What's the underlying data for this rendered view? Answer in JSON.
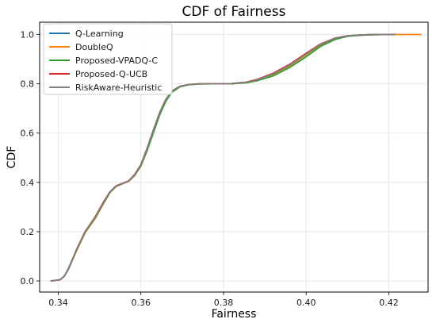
{
  "chart_data": {
    "type": "line",
    "title": "CDF of Fairness",
    "xlabel": "Fairness",
    "ylabel": "CDF",
    "xlim": [
      0.3355,
      0.4295
    ],
    "ylim": [
      -0.045,
      1.05
    ],
    "xticks": [
      0.34,
      0.36,
      0.38,
      0.4,
      0.42
    ],
    "xtick_labels": [
      "0.34",
      "0.36",
      "0.38",
      "0.40",
      "0.42"
    ],
    "yticks": [
      0.0,
      0.2,
      0.4,
      0.6,
      0.8,
      1.0
    ],
    "ytick_labels": [
      "0.0",
      "0.2",
      "0.4",
      "0.6",
      "0.8",
      "1.0"
    ],
    "grid": true,
    "legend_position": "top-left",
    "series": [
      {
        "name": "Q-Learning",
        "color": "#1f77b4",
        "x": [
          0.3383,
          0.3405,
          0.3415,
          0.3425,
          0.3445,
          0.3465,
          0.349,
          0.351,
          0.3525,
          0.354,
          0.3555,
          0.357,
          0.3585,
          0.36,
          0.3615,
          0.363,
          0.3645,
          0.366,
          0.3675,
          0.3695,
          0.3715,
          0.374,
          0.378,
          0.382,
          0.3855,
          0.388,
          0.392,
          0.396,
          0.4,
          0.4035,
          0.407,
          0.41,
          0.413,
          0.416,
          0.419,
          0.4215
        ],
        "y": [
          0.0,
          0.005,
          0.02,
          0.05,
          0.13,
          0.2,
          0.26,
          0.32,
          0.36,
          0.385,
          0.395,
          0.405,
          0.43,
          0.47,
          0.535,
          0.61,
          0.68,
          0.735,
          0.77,
          0.79,
          0.797,
          0.8,
          0.8,
          0.801,
          0.806,
          0.815,
          0.84,
          0.875,
          0.92,
          0.96,
          0.985,
          0.995,
          0.998,
          1.0,
          1.0,
          1.0
        ]
      },
      {
        "name": "DoubleQ",
        "color": "#ff7f0e",
        "x": [
          0.3383,
          0.3405,
          0.3415,
          0.3425,
          0.3445,
          0.3465,
          0.349,
          0.351,
          0.3525,
          0.354,
          0.3555,
          0.357,
          0.3585,
          0.36,
          0.3615,
          0.363,
          0.3645,
          0.366,
          0.3675,
          0.3695,
          0.3715,
          0.374,
          0.378,
          0.382,
          0.3855,
          0.388,
          0.392,
          0.396,
          0.4,
          0.4035,
          0.407,
          0.41,
          0.413,
          0.416,
          0.419,
          0.4215,
          0.4245,
          0.4278
        ],
        "y": [
          0.0,
          0.005,
          0.02,
          0.05,
          0.125,
          0.195,
          0.255,
          0.315,
          0.358,
          0.383,
          0.394,
          0.404,
          0.428,
          0.468,
          0.53,
          0.605,
          0.675,
          0.73,
          0.768,
          0.789,
          0.797,
          0.8,
          0.8,
          0.801,
          0.806,
          0.815,
          0.838,
          0.873,
          0.918,
          0.958,
          0.983,
          0.994,
          0.998,
          0.999,
          1.0,
          1.0,
          1.0,
          1.0
        ]
      },
      {
        "name": "Proposed-VPADQ-C",
        "color": "#2ca02c",
        "x": [
          0.3383,
          0.3405,
          0.3415,
          0.3425,
          0.3445,
          0.3465,
          0.349,
          0.351,
          0.3525,
          0.354,
          0.3555,
          0.357,
          0.3585,
          0.36,
          0.3615,
          0.363,
          0.3645,
          0.366,
          0.3675,
          0.3695,
          0.3715,
          0.374,
          0.378,
          0.382,
          0.3855,
          0.388,
          0.392,
          0.396,
          0.4,
          0.4035,
          0.407,
          0.41,
          0.413,
          0.416,
          0.419,
          0.4215
        ],
        "y": [
          0.0,
          0.005,
          0.02,
          0.048,
          0.128,
          0.198,
          0.258,
          0.318,
          0.359,
          0.384,
          0.395,
          0.405,
          0.428,
          0.466,
          0.528,
          0.6,
          0.672,
          0.728,
          0.766,
          0.788,
          0.796,
          0.799,
          0.8,
          0.8,
          0.804,
          0.812,
          0.832,
          0.866,
          0.91,
          0.952,
          0.98,
          0.993,
          0.997,
          0.999,
          1.0,
          1.0
        ]
      },
      {
        "name": "Proposed-Q-UCB",
        "color": "#d62728",
        "x": [
          0.3383,
          0.3405,
          0.3415,
          0.3425,
          0.3445,
          0.3465,
          0.349,
          0.351,
          0.3525,
          0.354,
          0.3555,
          0.357,
          0.3585,
          0.36,
          0.3615,
          0.363,
          0.3645,
          0.366,
          0.3675,
          0.3695,
          0.3715,
          0.374,
          0.378,
          0.382,
          0.3855,
          0.388,
          0.392,
          0.396,
          0.4,
          0.4035,
          0.407,
          0.41,
          0.413,
          0.416,
          0.419,
          0.4215
        ],
        "y": [
          0.0,
          0.005,
          0.021,
          0.052,
          0.13,
          0.2,
          0.262,
          0.322,
          0.361,
          0.386,
          0.396,
          0.406,
          0.432,
          0.472,
          0.538,
          0.612,
          0.682,
          0.736,
          0.771,
          0.79,
          0.797,
          0.8,
          0.8,
          0.801,
          0.807,
          0.817,
          0.843,
          0.879,
          0.924,
          0.962,
          0.986,
          0.995,
          0.998,
          1.0,
          1.0,
          1.0
        ]
      },
      {
        "name": "RiskAware-Heuristic",
        "color": "#7f7f7f",
        "x": [
          0.3383,
          0.3405,
          0.3415,
          0.3425,
          0.3445,
          0.3465,
          0.349,
          0.351,
          0.3525,
          0.354,
          0.3555,
          0.357,
          0.3585,
          0.36,
          0.3615,
          0.363,
          0.3645,
          0.366,
          0.3675,
          0.3695,
          0.3715,
          0.374,
          0.378,
          0.382,
          0.3855,
          0.388,
          0.392,
          0.396,
          0.4,
          0.4035,
          0.407,
          0.41,
          0.413,
          0.416,
          0.419,
          0.4215
        ],
        "y": [
          0.0,
          0.005,
          0.02,
          0.05,
          0.13,
          0.2,
          0.26,
          0.32,
          0.36,
          0.385,
          0.395,
          0.405,
          0.43,
          0.47,
          0.535,
          0.61,
          0.68,
          0.735,
          0.77,
          0.79,
          0.797,
          0.8,
          0.8,
          0.801,
          0.806,
          0.815,
          0.84,
          0.876,
          0.921,
          0.96,
          0.985,
          0.995,
          0.998,
          1.0,
          1.0,
          1.0
        ]
      }
    ]
  }
}
